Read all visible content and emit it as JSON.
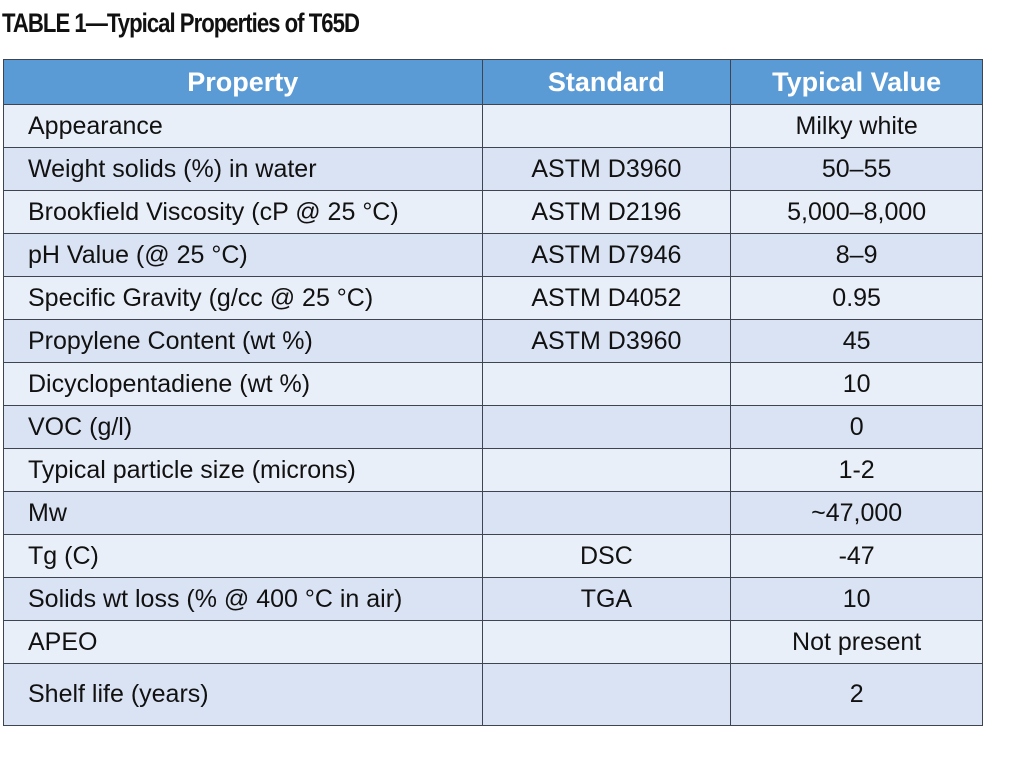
{
  "title": "TABLE 1—Typical Properties of T65D",
  "colors": {
    "header_bg": "#5b9bd5",
    "row_light": "#e9eff8",
    "row_dark": "#dae3f3"
  },
  "headers": [
    "Property",
    "Standard",
    "Typical Value"
  ],
  "rows": [
    [
      "Appearance",
      "",
      "Milky white"
    ],
    [
      "Weight solids (%) in water",
      "ASTM D3960",
      "50–55"
    ],
    [
      "Brookfield Viscosity (cP @ 25 °C)",
      "ASTM D2196",
      "5,000–8,000"
    ],
    [
      "pH Value (@ 25 °C)",
      "ASTM D7946",
      "8–9"
    ],
    [
      "Specific Gravity (g/cc @ 25 °C)",
      "ASTM D4052",
      "0.95"
    ],
    [
      "Propylene Content (wt %)",
      "ASTM D3960",
      "45"
    ],
    [
      "Dicyclopentadiene (wt %)",
      "",
      "10"
    ],
    [
      "VOC (g/l)",
      "",
      "0"
    ],
    [
      "Typical particle size (microns)",
      "",
      "1-2"
    ],
    [
      "Mw",
      "",
      "~47,000"
    ],
    [
      "Tg (C)",
      "DSC",
      "-47"
    ],
    [
      "Solids wt loss (% @ 400 °C in air)",
      "TGA",
      "10"
    ],
    [
      "APEO",
      "",
      "Not present"
    ],
    [
      "Shelf life (years)",
      "",
      "2"
    ]
  ]
}
